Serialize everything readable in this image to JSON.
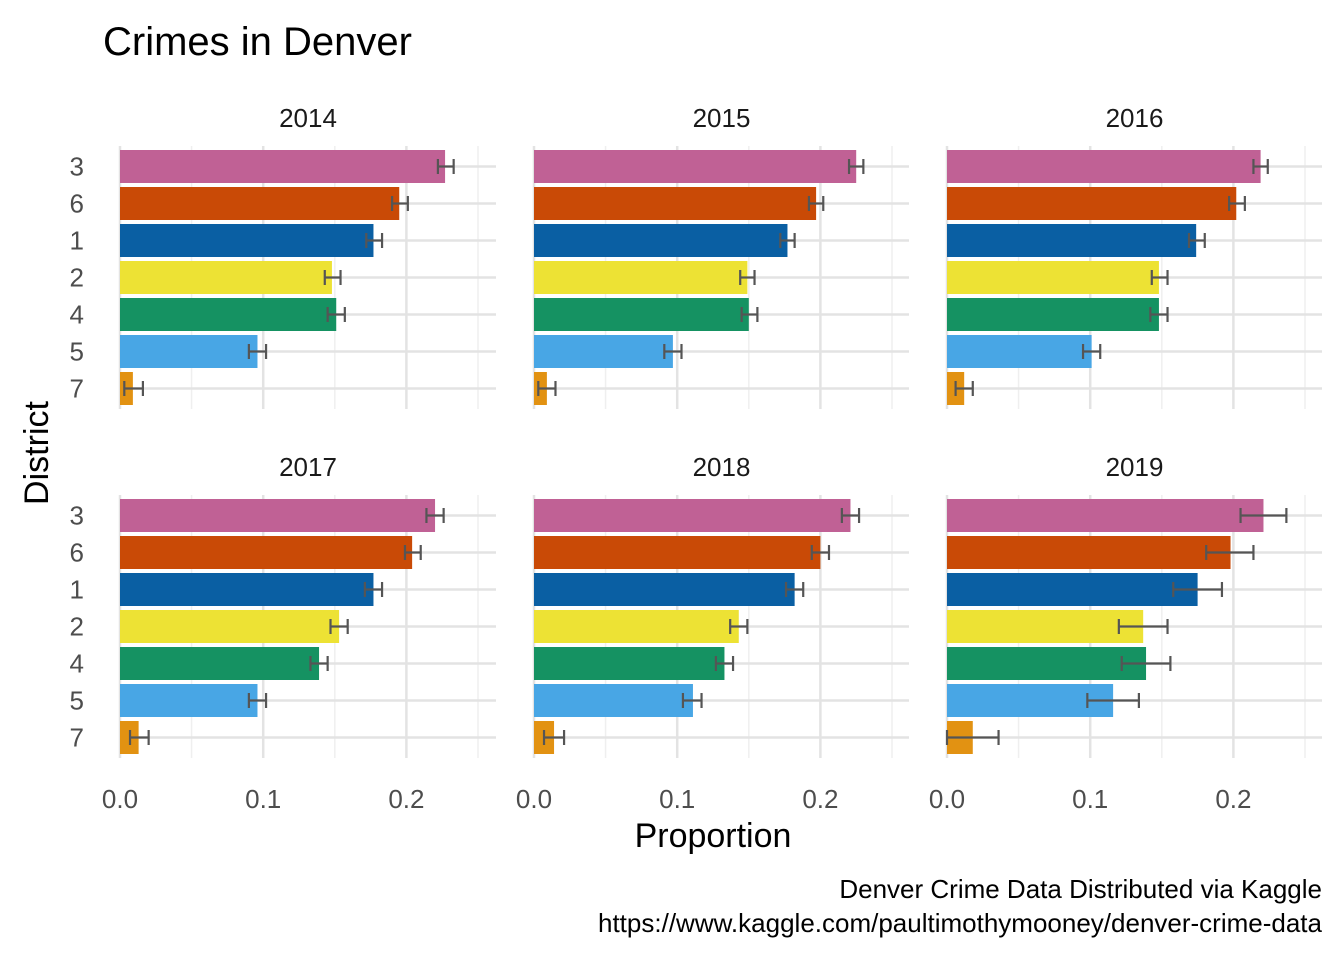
{
  "title": "Crimes in Denver",
  "caption_line1": "Denver Crime Data Distributed via Kaggle",
  "caption_line2": "https://www.kaggle.com/paultimothymooney/denver-crime-data",
  "chart_data": {
    "type": "bar",
    "orientation": "horizontal",
    "facets": [
      "2014",
      "2015",
      "2016",
      "2017",
      "2018",
      "2019"
    ],
    "categories": [
      "3",
      "6",
      "1",
      "2",
      "4",
      "5",
      "7"
    ],
    "xlabel": "Proportion",
    "ylabel": "District",
    "xlim": [
      0,
      0.25
    ],
    "x_ticks": [
      "0.0",
      "0.1",
      "0.2"
    ],
    "grid": true,
    "legend": "none",
    "colors": {
      "3": "#C06195",
      "6": "#C94A06",
      "1": "#0A5FA3",
      "2": "#EDE234",
      "4": "#159262",
      "5": "#48A6E5",
      "7": "#E29212"
    },
    "panels": [
      {
        "facet": "2014",
        "values": [
          0.227,
          0.195,
          0.177,
          0.148,
          0.151,
          0.096,
          0.009
        ],
        "err_low": [
          0.222,
          0.19,
          0.172,
          0.143,
          0.145,
          0.09,
          0.003
        ],
        "err_high": [
          0.233,
          0.201,
          0.183,
          0.154,
          0.157,
          0.102,
          0.016
        ]
      },
      {
        "facet": "2015",
        "values": [
          0.225,
          0.197,
          0.177,
          0.149,
          0.15,
          0.097,
          0.009
        ],
        "err_low": [
          0.22,
          0.192,
          0.172,
          0.144,
          0.145,
          0.091,
          0.003
        ],
        "err_high": [
          0.23,
          0.202,
          0.182,
          0.154,
          0.156,
          0.103,
          0.015
        ]
      },
      {
        "facet": "2016",
        "values": [
          0.219,
          0.202,
          0.174,
          0.148,
          0.148,
          0.101,
          0.012
        ],
        "err_low": [
          0.214,
          0.197,
          0.169,
          0.143,
          0.142,
          0.095,
          0.006
        ],
        "err_high": [
          0.224,
          0.208,
          0.18,
          0.154,
          0.154,
          0.107,
          0.018
        ]
      },
      {
        "facet": "2017",
        "values": [
          0.22,
          0.204,
          0.177,
          0.153,
          0.139,
          0.096,
          0.013
        ],
        "err_low": [
          0.214,
          0.199,
          0.171,
          0.147,
          0.133,
          0.09,
          0.007
        ],
        "err_high": [
          0.226,
          0.21,
          0.183,
          0.159,
          0.145,
          0.102,
          0.02
        ]
      },
      {
        "facet": "2018",
        "values": [
          0.221,
          0.2,
          0.182,
          0.143,
          0.133,
          0.111,
          0.014
        ],
        "err_low": [
          0.215,
          0.194,
          0.176,
          0.137,
          0.127,
          0.104,
          0.007
        ],
        "err_high": [
          0.227,
          0.206,
          0.188,
          0.149,
          0.139,
          0.117,
          0.021
        ]
      },
      {
        "facet": "2019",
        "values": [
          0.221,
          0.198,
          0.175,
          0.137,
          0.139,
          0.116,
          0.018
        ],
        "err_low": [
          0.205,
          0.181,
          0.158,
          0.12,
          0.122,
          0.098,
          0.0
        ],
        "err_high": [
          0.237,
          0.214,
          0.192,
          0.154,
          0.156,
          0.134,
          0.036
        ]
      }
    ]
  }
}
